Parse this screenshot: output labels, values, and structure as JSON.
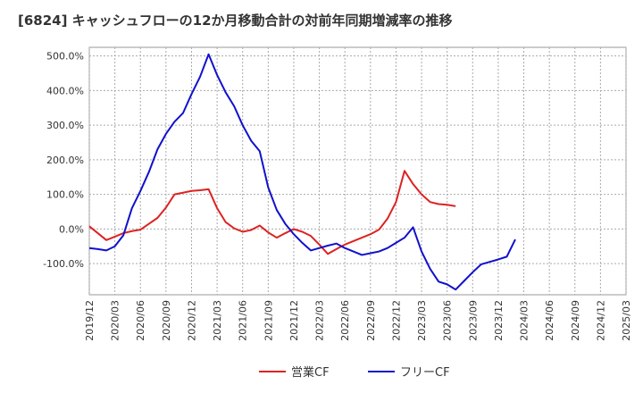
{
  "chart_data": {
    "type": "line",
    "title": "[6824]  キャッシュフローの12か月移動合計の対前年同期増減率の推移",
    "xlabel": "",
    "ylabel": "",
    "ylim": [
      -190,
      525
    ],
    "yticks": [
      500,
      400,
      300,
      200,
      100,
      0,
      -100
    ],
    "ytick_labels": [
      "500.0%",
      "400.0%",
      "300.0%",
      "200.0%",
      "100.0%",
      "0.0%",
      "-100.0%"
    ],
    "x_labels": [
      "2019/12",
      "2020/03",
      "2020/06",
      "2020/09",
      "2020/12",
      "2021/03",
      "2021/06",
      "2021/09",
      "2021/12",
      "2022/03",
      "2022/06",
      "2022/09",
      "2022/12",
      "2023/03",
      "2023/06",
      "2023/09",
      "2023/12",
      "2024/03",
      "2024/06",
      "2024/09",
      "2024/12",
      "2025/03"
    ],
    "grid": true,
    "legend": "bottom",
    "series": [
      {
        "name": "営業CF",
        "color": "#dd2222",
        "start_index": 0,
        "values": [
          8,
          -12,
          -32,
          -22,
          -12,
          -6,
          -2,
          15,
          32,
          62,
          100,
          105,
          110,
          112,
          115,
          60,
          20,
          2,
          -8,
          -3,
          10,
          -10,
          -25,
          -12,
          0,
          -8,
          -20,
          -45,
          -72,
          -58,
          -45,
          -35,
          -25,
          -15,
          -2,
          30,
          78,
          168,
          130,
          100,
          78,
          72,
          70,
          66
        ]
      },
      {
        "name": "フリーCF",
        "color": "#1111cc",
        "start_index": 0,
        "values": [
          -55,
          -58,
          -62,
          -50,
          -18,
          60,
          110,
          165,
          230,
          275,
          310,
          335,
          390,
          440,
          505,
          445,
          395,
          355,
          300,
          255,
          225,
          120,
          55,
          15,
          -15,
          -40,
          -62,
          -55,
          -48,
          -42,
          -55,
          -65,
          -75,
          -70,
          -65,
          -55,
          -40,
          -25,
          5,
          -65,
          -115,
          -152,
          -160,
          -175,
          -150,
          -125,
          -102,
          -95,
          -88,
          -80,
          -30
        ]
      }
    ]
  }
}
